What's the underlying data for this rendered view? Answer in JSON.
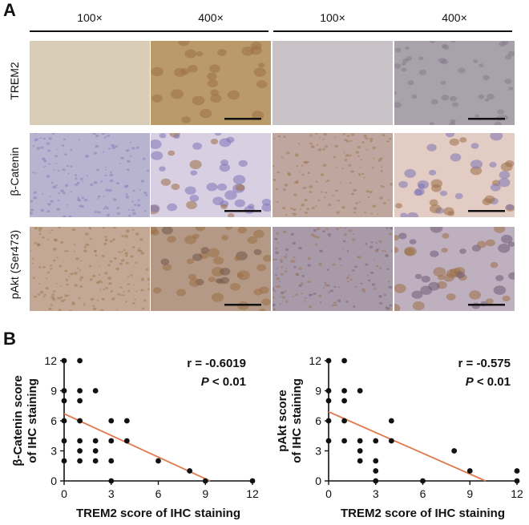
{
  "panel_a": {
    "letter": "A",
    "magnifications": [
      "100×",
      "400×",
      "100×",
      "400×"
    ],
    "rows": [
      "TREM2",
      "β-Catenin",
      "pAkt (Ser473)"
    ],
    "colors": {
      "trem2_low": "#d9cdb8",
      "trem2_brown": "#b99a68",
      "trem2_gray": "#c9c2c7",
      "trem2_gray2": "#a8a2aa",
      "blue_bg": "#b8b4cf",
      "purple_cell": "#7f74b6",
      "brown_cell": "#9c7045",
      "scale_bar": "#111111"
    }
  },
  "panel_b": {
    "letter": "B",
    "chart_data": [
      {
        "type": "scatter",
        "ylabel_line1": "β-Catenin score",
        "ylabel_line2": "of IHC staining",
        "xlabel": "TREM2 score of IHC staining",
        "xticks": [
          0,
          3,
          6,
          9,
          12
        ],
        "yticks": [
          0,
          3,
          6,
          9,
          12
        ],
        "xlim": [
          0,
          12
        ],
        "ylim": [
          0,
          12
        ],
        "stat_r": "r = -0.6019",
        "stat_p_italic": "P",
        "stat_p_rest": " < 0.01",
        "points": [
          [
            0,
            12
          ],
          [
            0,
            9
          ],
          [
            0,
            8
          ],
          [
            0,
            6
          ],
          [
            0,
            4
          ],
          [
            0,
            2
          ],
          [
            1,
            12
          ],
          [
            1,
            9
          ],
          [
            1,
            8
          ],
          [
            1,
            6
          ],
          [
            1,
            4
          ],
          [
            1,
            3
          ],
          [
            1,
            2
          ],
          [
            2,
            9
          ],
          [
            2,
            4
          ],
          [
            2,
            3
          ],
          [
            2,
            2
          ],
          [
            3,
            6
          ],
          [
            3,
            4
          ],
          [
            3,
            2
          ],
          [
            3,
            0
          ],
          [
            4,
            6
          ],
          [
            4,
            4
          ],
          [
            6,
            2
          ],
          [
            8,
            1
          ],
          [
            9,
            0
          ],
          [
            12,
            0
          ]
        ],
        "fit_line": {
          "x": [
            0,
            9.3
          ],
          "y": [
            6.7,
            0
          ]
        },
        "point_color": "#111111",
        "line_color": "#e07a4f"
      },
      {
        "type": "scatter",
        "ylabel_line1": "pAkt score",
        "ylabel_line2": "of IHC staining",
        "xlabel": "TREM2 score of IHC staining",
        "xticks": [
          0,
          3,
          6,
          9,
          12
        ],
        "yticks": [
          0,
          3,
          6,
          9,
          12
        ],
        "xlim": [
          0,
          12
        ],
        "ylim": [
          0,
          12
        ],
        "stat_r": "r = -0.575",
        "stat_p_italic": "P",
        "stat_p_rest": " < 0.01",
        "points": [
          [
            0,
            12
          ],
          [
            0,
            9
          ],
          [
            0,
            8
          ],
          [
            0,
            6
          ],
          [
            0,
            4
          ],
          [
            1,
            12
          ],
          [
            1,
            9
          ],
          [
            1,
            8
          ],
          [
            1,
            6
          ],
          [
            1,
            4
          ],
          [
            2,
            9
          ],
          [
            2,
            4
          ],
          [
            2,
            3
          ],
          [
            2,
            2
          ],
          [
            3,
            4
          ],
          [
            3,
            2
          ],
          [
            3,
            1
          ],
          [
            3,
            0
          ],
          [
            4,
            6
          ],
          [
            4,
            4
          ],
          [
            6,
            0
          ],
          [
            8,
            3
          ],
          [
            9,
            1
          ],
          [
            12,
            1
          ],
          [
            12,
            0
          ]
        ],
        "fit_line": {
          "x": [
            0,
            10
          ],
          "y": [
            6.9,
            0
          ]
        },
        "point_color": "#111111",
        "line_color": "#e07a4f"
      }
    ]
  }
}
